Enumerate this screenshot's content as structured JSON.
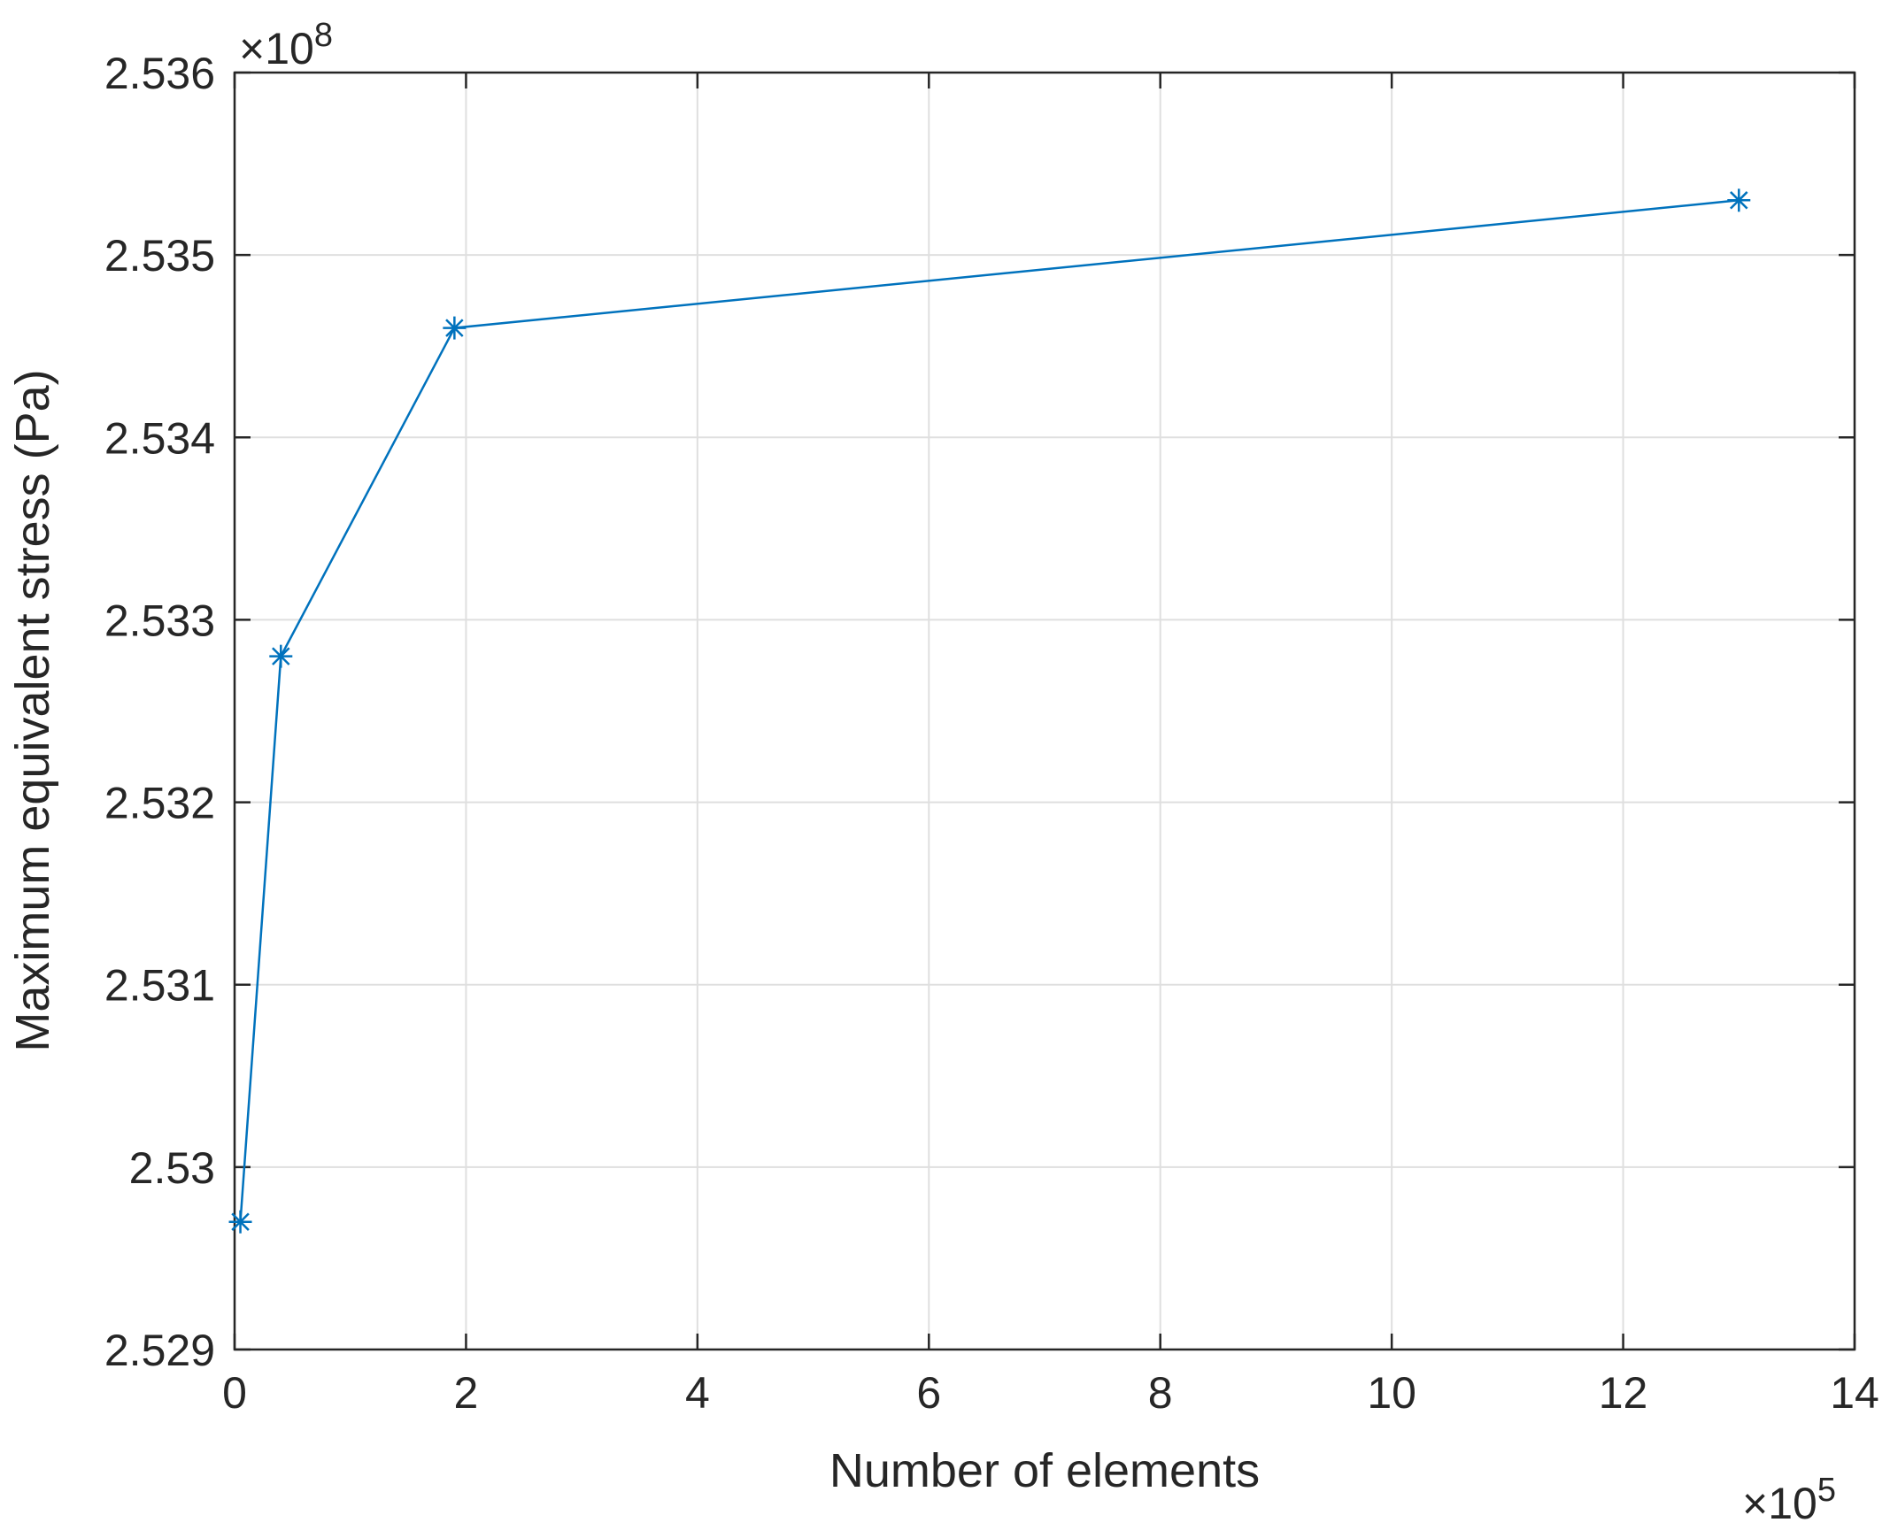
{
  "chart_data": {
    "type": "line",
    "title": "",
    "xlabel": "Number of elements",
    "ylabel": "Maximum equivalent stress (Pa)",
    "x_multiplier_label": {
      "prefix": "×10",
      "exponent": "5"
    },
    "y_multiplier_label": {
      "prefix": "×10",
      "exponent": "8"
    },
    "xlim": [
      0,
      14
    ],
    "ylim": [
      2.529,
      2.536
    ],
    "xticks": [
      0,
      2,
      4,
      6,
      8,
      10,
      12,
      14
    ],
    "xtick_labels": [
      "0",
      "2",
      "4",
      "6",
      "8",
      "10",
      "12",
      "14"
    ],
    "yticks": [
      2.529,
      2.53,
      2.531,
      2.532,
      2.533,
      2.534,
      2.535,
      2.536
    ],
    "ytick_labels": [
      "2.529",
      "2.53",
      "2.531",
      "2.532",
      "2.533",
      "2.534",
      "2.535",
      "2.536"
    ],
    "grid": true,
    "series": [
      {
        "marker": "asterisk",
        "color": "#0072BD",
        "points": [
          {
            "x": 0.05,
            "y": 2.5297
          },
          {
            "x": 0.4,
            "y": 2.5328
          },
          {
            "x": 1.9,
            "y": 2.5346
          },
          {
            "x": 13.0,
            "y": 2.5353
          }
        ]
      }
    ]
  }
}
